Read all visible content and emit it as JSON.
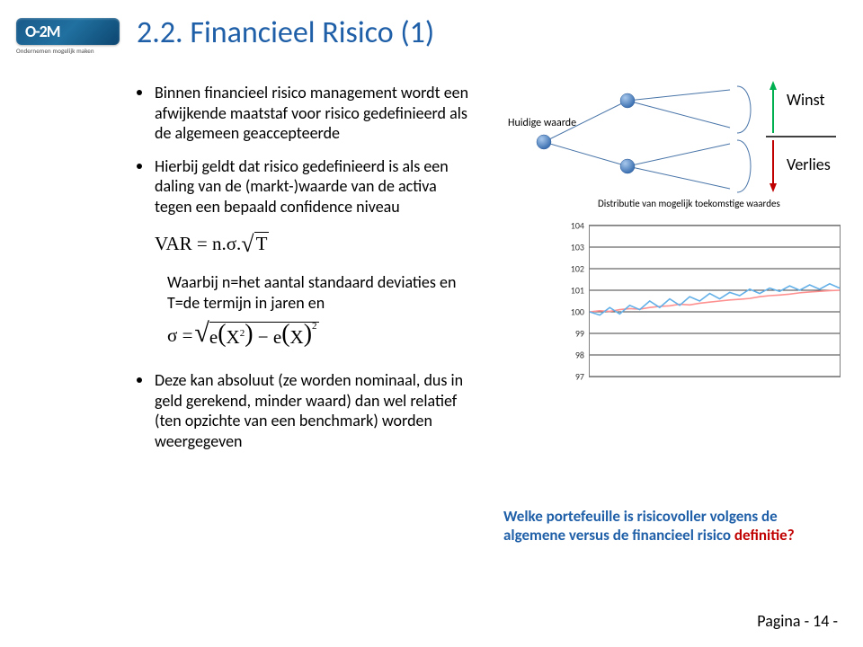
{
  "logo": {
    "text": "O-2M",
    "tagline": "Ondernemen mogelijk maken"
  },
  "title": "2.2. Financieel Risico (1)",
  "bullets": [
    "Binnen financieel risico management wordt een afwijkende maatstaf voor risico gedefinieerd als de algemeen geaccepteerde",
    "Hierbij geldt dat risico gedefinieerd is als een daling van de (markt-)waarde van de activa tegen een bepaald confidence niveau"
  ],
  "formula_var_prefix": "VAR = n.σ.",
  "formula_var_sqrt": "T",
  "sub_text": "Waarbij n=het aantal standaard deviaties en T=de termijn in jaren en",
  "formula_sigma_sigma": "σ = ",
  "formula_sigma_body": "e(X²) − e(X)²",
  "bullet3": "Deze kan absoluut (ze worden nominaal, dus in geld gerekend, minder waard) dan wel relatief (ten opzichte van een benchmark) worden weergegeven",
  "labels": {
    "huidige": "Huidige waarde",
    "winst": "Winst",
    "verlies": "Verlies",
    "distrib": "Distributie van mogelijk toekomstige waardes"
  },
  "caption_main": "Welke portefeuille is risicovoller volgens de algemene versus de financieel risico ",
  "caption_red": "definitie?",
  "page": "Pagina - 14 -",
  "chart": {
    "ylim": [
      97,
      104
    ],
    "ytick_step": 1,
    "ticks": [
      97,
      98,
      99,
      100,
      101,
      102,
      103,
      104
    ],
    "grid_color": "#000000",
    "border_color": "#808080",
    "series": [
      {
        "color": "#ff9090",
        "points": [
          [
            0,
            100.0
          ],
          [
            0.04,
            100.05
          ],
          [
            0.08,
            100.02
          ],
          [
            0.12,
            100.1
          ],
          [
            0.16,
            100.15
          ],
          [
            0.2,
            100.12
          ],
          [
            0.24,
            100.2
          ],
          [
            0.28,
            100.25
          ],
          [
            0.32,
            100.28
          ],
          [
            0.36,
            100.35
          ],
          [
            0.4,
            100.32
          ],
          [
            0.44,
            100.4
          ],
          [
            0.48,
            100.45
          ],
          [
            0.52,
            100.5
          ],
          [
            0.56,
            100.55
          ],
          [
            0.6,
            100.58
          ],
          [
            0.64,
            100.62
          ],
          [
            0.68,
            100.7
          ],
          [
            0.72,
            100.75
          ],
          [
            0.76,
            100.78
          ],
          [
            0.8,
            100.82
          ],
          [
            0.84,
            100.88
          ],
          [
            0.88,
            100.92
          ],
          [
            0.92,
            100.95
          ],
          [
            0.96,
            100.98
          ],
          [
            1,
            101.0
          ]
        ]
      },
      {
        "color": "#63b0e8",
        "points": [
          [
            0,
            100.0
          ],
          [
            0.04,
            99.85
          ],
          [
            0.08,
            100.2
          ],
          [
            0.12,
            99.9
          ],
          [
            0.16,
            100.3
          ],
          [
            0.2,
            100.1
          ],
          [
            0.24,
            100.5
          ],
          [
            0.28,
            100.2
          ],
          [
            0.32,
            100.6
          ],
          [
            0.36,
            100.3
          ],
          [
            0.4,
            100.7
          ],
          [
            0.44,
            100.5
          ],
          [
            0.48,
            100.85
          ],
          [
            0.52,
            100.6
          ],
          [
            0.56,
            100.9
          ],
          [
            0.6,
            100.75
          ],
          [
            0.64,
            101.05
          ],
          [
            0.68,
            100.85
          ],
          [
            0.72,
            101.1
          ],
          [
            0.76,
            100.95
          ],
          [
            0.8,
            101.2
          ],
          [
            0.84,
            101.0
          ],
          [
            0.88,
            101.25
          ],
          [
            0.92,
            101.05
          ],
          [
            0.96,
            101.3
          ],
          [
            1,
            101.1
          ]
        ]
      }
    ]
  },
  "diagram": {
    "node_fill": "#5a8fd0",
    "node_stroke": "#2a5a9a",
    "line_color": "#4874a8",
    "winst_arrow": "#00b050",
    "verlies_arrow": "#c00000",
    "divider_color": "#000000"
  }
}
